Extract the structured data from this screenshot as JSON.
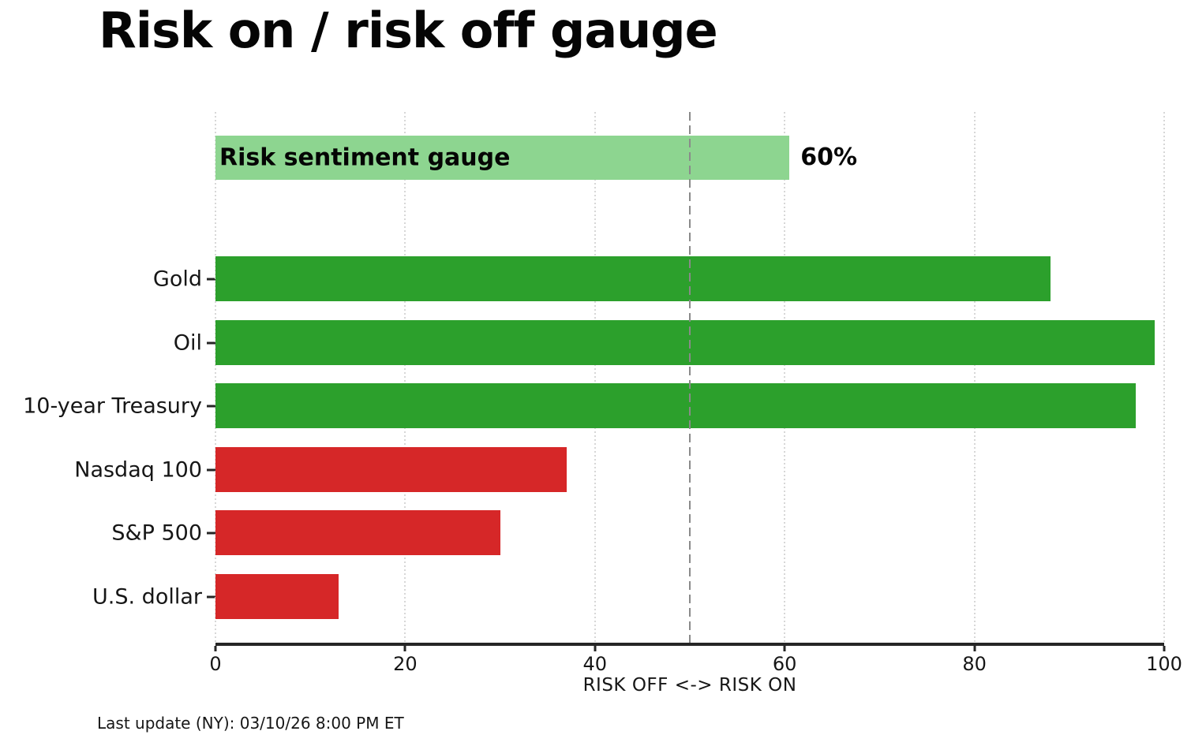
{
  "title": "Risk on / risk off gauge",
  "footer": "Last update (NY): 03/10/26 8:00 PM ET",
  "chart_data": {
    "type": "bar",
    "orientation": "horizontal",
    "title": "Risk on / risk off gauge",
    "xlabel": "RISK OFF <-> RISK ON",
    "xlim": [
      0,
      100
    ],
    "xticks": [
      0,
      20,
      40,
      60,
      80,
      100
    ],
    "grid": "dotted vertical gridlines at each x tick",
    "legend": "none",
    "threshold_line": {
      "x": 50,
      "style": "dashed",
      "color": "#8a8a8a"
    },
    "colors": {
      "risk_on": "#2ca02c",
      "risk_off": "#d62728",
      "gauge": "#8dd590"
    },
    "gauge": {
      "label": "Risk sentiment gauge",
      "value": 60.5,
      "value_label": "60%",
      "sentiment": "gauge"
    },
    "categories": [
      "Gold",
      "Oil",
      "10-year Treasury",
      "Nasdaq 100",
      "S&P 500",
      "U.S. dollar"
    ],
    "series": [
      {
        "name": "Gold",
        "value": 88,
        "sentiment": "risk_on"
      },
      {
        "name": "Oil",
        "value": 99,
        "sentiment": "risk_on"
      },
      {
        "name": "10-year Treasury",
        "value": 97,
        "sentiment": "risk_on"
      },
      {
        "name": "Nasdaq 100",
        "value": 37,
        "sentiment": "risk_off"
      },
      {
        "name": "S&P 500",
        "value": 30,
        "sentiment": "risk_off"
      },
      {
        "name": "U.S. dollar",
        "value": 13,
        "sentiment": "risk_off"
      }
    ]
  }
}
